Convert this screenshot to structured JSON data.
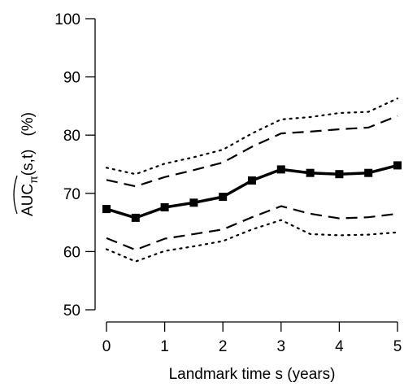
{
  "chart_data": {
    "type": "line",
    "title": "",
    "xlabel": "Landmark time s (years)",
    "ylabel": {
      "main": "AUC",
      "subscript": "π",
      "args": "(s,t)",
      "unit": "(%)"
    },
    "xlim": [
      0,
      5
    ],
    "ylim": [
      50,
      100
    ],
    "x_ticks": [
      "0",
      "1",
      "2",
      "3",
      "4",
      "5"
    ],
    "y_ticks": [
      "50",
      "60",
      "70",
      "80",
      "90",
      "100"
    ],
    "grid": false,
    "legend": "none",
    "x": [
      0,
      0.5,
      1,
      1.5,
      2,
      2.5,
      3,
      3.5,
      4,
      4.5,
      5
    ],
    "series": [
      {
        "style": "solid-markers",
        "color": "#000000",
        "values": [
          67.3,
          65.8,
          67.6,
          68.4,
          69.4,
          72.2,
          74.1,
          73.5,
          73.3,
          73.5,
          74.8
        ]
      },
      {
        "style": "dashed",
        "color": "#000000",
        "values": [
          72.3,
          71.2,
          72.8,
          74.0,
          75.3,
          78.0,
          80.3,
          80.6,
          81.0,
          81.3,
          83.3
        ]
      },
      {
        "style": "dashed",
        "color": "#000000",
        "values": [
          62.3,
          60.3,
          62.2,
          63.0,
          63.8,
          65.9,
          67.8,
          66.5,
          65.7,
          65.9,
          66.5
        ]
      },
      {
        "style": "dotted",
        "color": "#000000",
        "values": [
          74.4,
          73.3,
          75.1,
          76.2,
          77.5,
          80.3,
          82.7,
          83.1,
          83.8,
          84.0,
          86.3
        ]
      },
      {
        "style": "dotted",
        "color": "#000000",
        "values": [
          60.4,
          58.3,
          60.1,
          60.9,
          61.8,
          63.8,
          65.4,
          63.0,
          62.8,
          62.9,
          63.3
        ]
      }
    ]
  }
}
